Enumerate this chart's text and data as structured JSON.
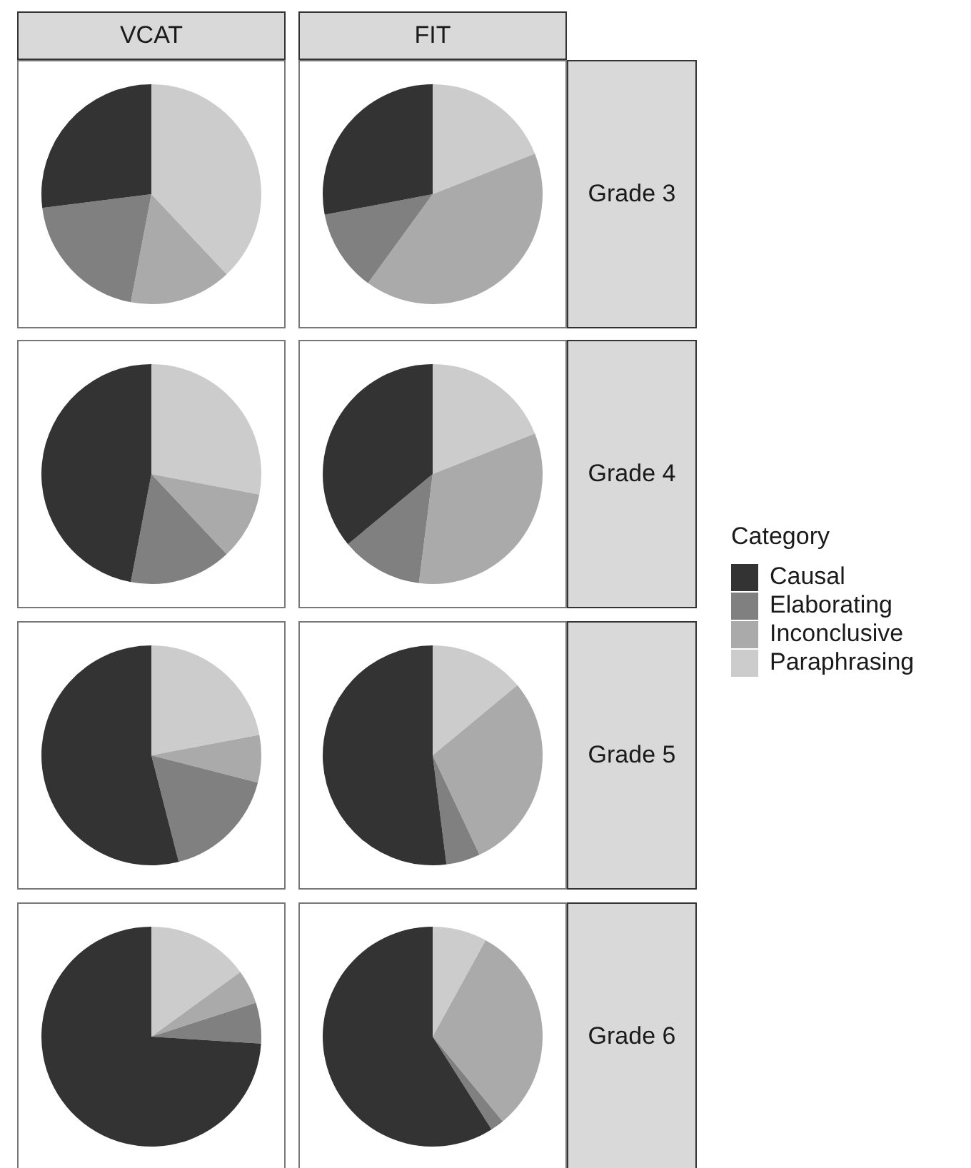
{
  "chart_data": [
    {
      "type": "pie",
      "title": "VCAT",
      "legend": "right",
      "legend_title": "Category",
      "categories": [
        "Causal",
        "Elaborating",
        "Inconclusive",
        "Paraphrasing"
      ],
      "values": [
        27,
        20,
        15,
        38
      ],
      "colors": [
        "#333333",
        "#808080",
        "#aaaaaa",
        "#cccccc"
      ]
    },
    {
      "type": "pie",
      "title": "FIT",
      "subtitle": "Grade 3",
      "categories": [
        null,
        null,
        null,
        null
      ],
      "values": [
        28,
        12,
        41,
        19
      ],
      "colors": [
        "#333333",
        "#808080",
        "#aaaaaa",
        "#cccccc"
      ]
    },
    {
      "type": "pie",
      "categories": [
        null,
        null,
        null,
        null
      ],
      "values": [
        47,
        15,
        10,
        28
      ],
      "colors": [
        "#333333",
        "#808080",
        "#aaaaaa",
        "#cccccc"
      ]
    },
    {
      "type": "pie",
      "subtitle": "Grade 4",
      "categories": [
        null,
        null,
        null,
        null
      ],
      "values": [
        36,
        12,
        33,
        19
      ],
      "colors": [
        "#333333",
        "#808080",
        "#aaaaaa",
        "#cccccc"
      ]
    },
    {
      "type": "pie",
      "categories": [
        null,
        null,
        null,
        null
      ],
      "values": [
        54,
        17,
        7,
        22
      ],
      "colors": [
        "#333333",
        "#808080",
        "#aaaaaa",
        "#cccccc"
      ]
    },
    {
      "type": "pie",
      "subtitle": "Grade 5",
      "categories": [
        null,
        null,
        null,
        null
      ],
      "values": [
        52,
        5,
        29,
        14
      ],
      "colors": [
        "#333333",
        "#808080",
        "#aaaaaa",
        "#cccccc"
      ]
    },
    {
      "type": "pie",
      "categories": [
        null,
        null,
        null,
        null
      ],
      "values": [
        74,
        6,
        5,
        15
      ],
      "colors": [
        "#333333",
        "#808080",
        "#aaaaaa",
        "#cccccc"
      ]
    },
    {
      "type": "pie",
      "subtitle": "Grade 6",
      "categories": [
        null,
        null,
        null,
        null
      ],
      "values": [
        59,
        2,
        31,
        8
      ],
      "colors": [
        "#333333",
        "#808080",
        "#aaaaaa",
        "#cccccc"
      ]
    }
  ]
}
